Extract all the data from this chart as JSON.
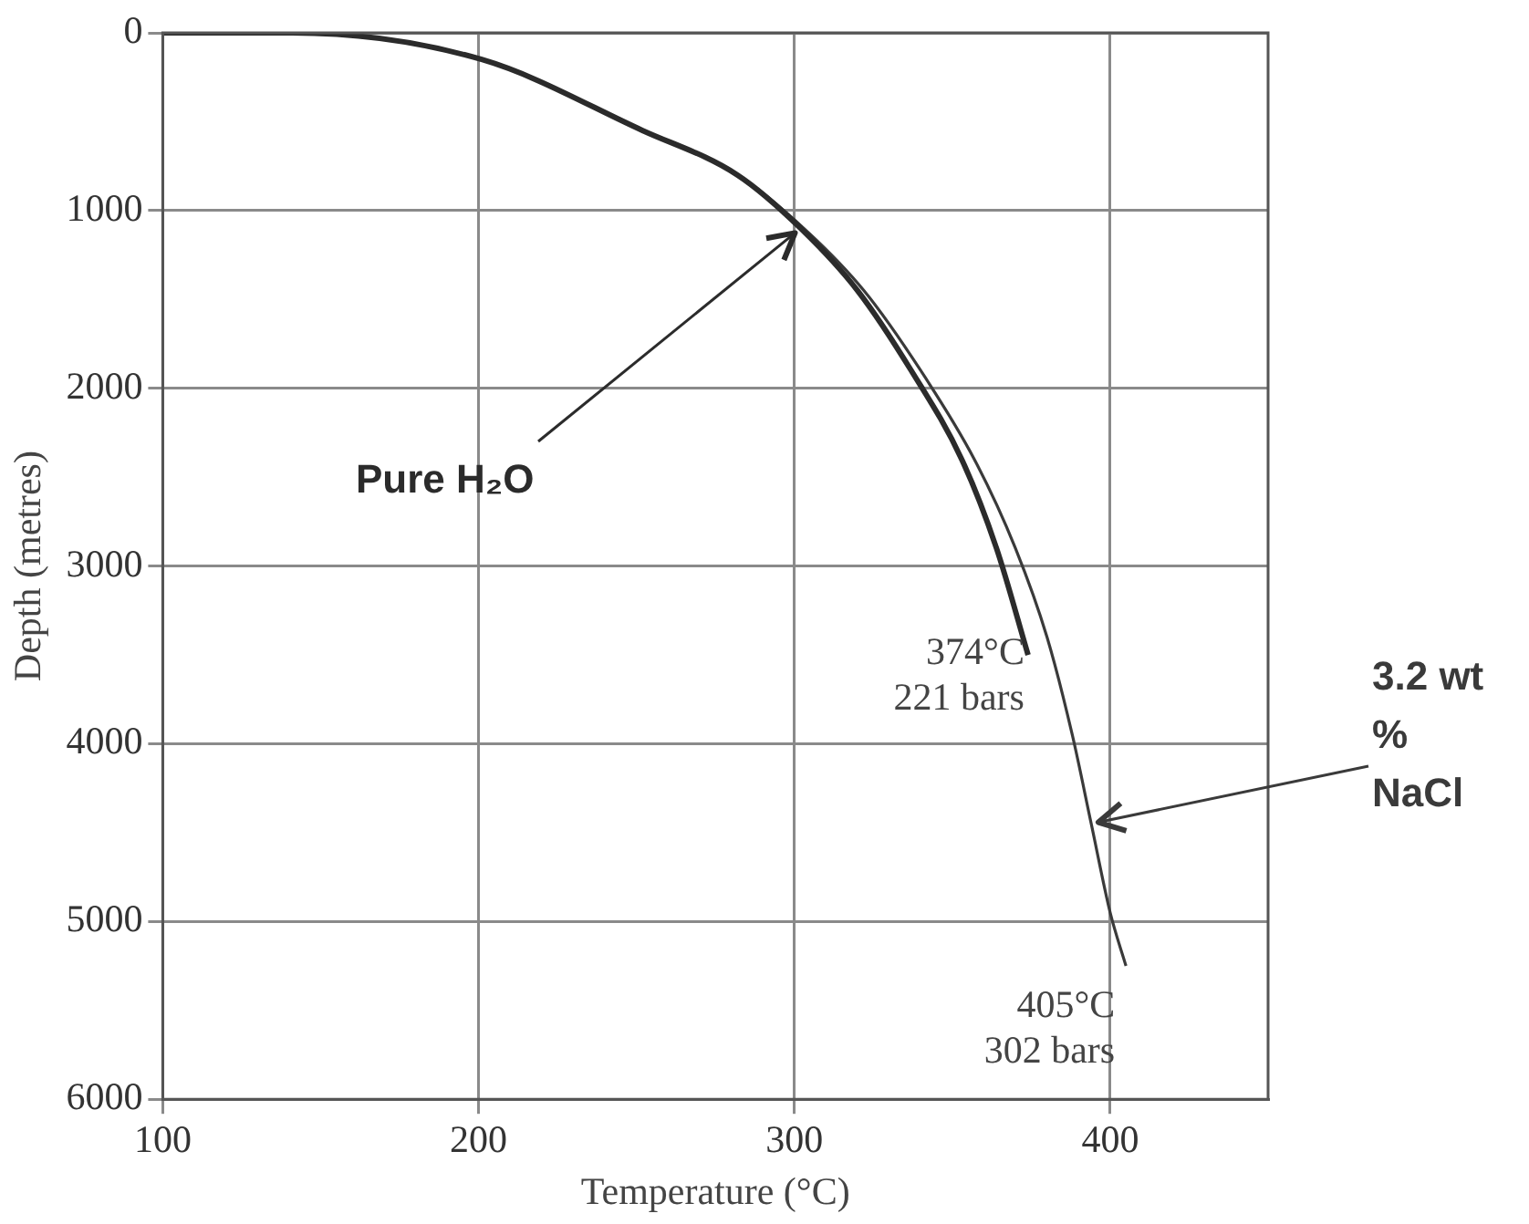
{
  "chart_data": {
    "type": "line",
    "xlabel": "Temperature (°C)",
    "ylabel": "Depth (metres)",
    "series": [
      {
        "name": "Pure H₂O",
        "color": "#2b2b2b",
        "x": [
          100,
          141,
          201,
          252,
          282,
          302,
          320,
          337,
          353,
          364,
          374
        ],
        "values": [
          0,
          0,
          150,
          550,
          800,
          1100,
          1450,
          1900,
          2400,
          2900,
          3500
        ]
      },
      {
        "name": "3.2 wt % NaCl",
        "color": "#3a3a3a",
        "x": [
          100,
          141,
          201,
          252,
          282,
          303,
          322,
          340,
          357,
          370,
          380,
          388,
          394,
          400,
          405
        ],
        "values": [
          0,
          0,
          150,
          550,
          800,
          1100,
          1450,
          1900,
          2400,
          2900,
          3400,
          3950,
          4450,
          4950,
          5250
        ]
      }
    ],
    "xlim": [
      100,
      450
    ],
    "xticks": [
      100,
      200,
      300,
      400
    ],
    "ylim": [
      6000,
      0
    ],
    "yticks": [
      0,
      1000,
      2000,
      3000,
      4000,
      5000,
      6000
    ],
    "grid": true,
    "marker": "none",
    "line_style": "solid",
    "annotations": [
      {
        "text": "374°C\n221 bars",
        "x": 374,
        "y": 3500
      },
      {
        "text": "405°C\n302 bars",
        "x": 405,
        "y": 5250
      }
    ]
  }
}
